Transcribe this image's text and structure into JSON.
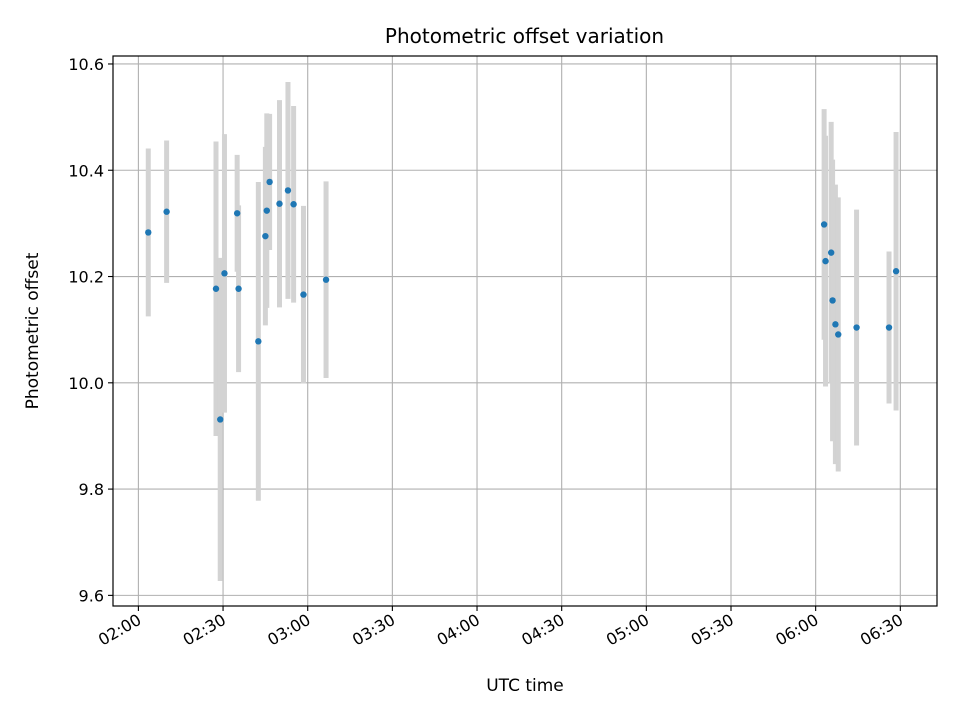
{
  "chart_data": {
    "type": "scatter",
    "title": "Photometric offset variation",
    "xlabel": "UTC time",
    "ylabel": "Photometric offset",
    "x_axis_type": "time",
    "xlim": [
      "01:51",
      "06:43"
    ],
    "ylim": [
      9.58,
      10.615
    ],
    "grid": true,
    "x_ticks": [
      "02:00",
      "02:30",
      "03:00",
      "03:30",
      "04:00",
      "04:30",
      "05:00",
      "05:30",
      "06:00",
      "06:30"
    ],
    "y_ticks": [
      "9.6",
      "9.8",
      "10.0",
      "10.2",
      "10.4",
      "10.6"
    ],
    "point_color": "#1f77b4",
    "errorbar_color": "#d3d3d3",
    "series": [
      {
        "points": [
          {
            "t": "02:03:30",
            "y": 10.283,
            "err": 0.158
          },
          {
            "t": "02:10:00",
            "y": 10.322,
            "err": 0.134
          },
          {
            "t": "02:27:30",
            "y": 10.177,
            "err": 0.277
          },
          {
            "t": "02:29:00",
            "y": 9.931,
            "err": 0.304
          },
          {
            "t": "02:30:30",
            "y": 10.206,
            "err": 0.262
          },
          {
            "t": "02:35:00",
            "y": 10.319,
            "err": 0.11
          },
          {
            "t": "02:35:30",
            "y": 10.177,
            "err": 0.157
          },
          {
            "t": "02:42:30",
            "y": 10.078,
            "err": 0.3
          },
          {
            "t": "02:45:00",
            "y": 10.276,
            "err": 0.168
          },
          {
            "t": "02:45:30",
            "y": 10.324,
            "err": 0.183
          },
          {
            "t": "02:46:30",
            "y": 10.378,
            "err": 0.128
          },
          {
            "t": "02:50:00",
            "y": 10.337,
            "err": 0.195
          },
          {
            "t": "02:53:00",
            "y": 10.362,
            "err": 0.204
          },
          {
            "t": "02:55:00",
            "y": 10.336,
            "err": 0.185
          },
          {
            "t": "02:58:30",
            "y": 10.166,
            "err": 0.167
          },
          {
            "t": "03:06:30",
            "y": 10.194,
            "err": 0.185
          },
          {
            "t": "06:03:00",
            "y": 10.298,
            "err": 0.217
          },
          {
            "t": "06:03:30",
            "y": 10.229,
            "err": 0.236
          },
          {
            "t": "06:05:30",
            "y": 10.245,
            "err": 0.246
          },
          {
            "t": "06:06:00",
            "y": 10.155,
            "err": 0.265
          },
          {
            "t": "06:07:00",
            "y": 10.11,
            "err": 0.263
          },
          {
            "t": "06:08:00",
            "y": 10.091,
            "err": 0.258
          },
          {
            "t": "06:14:30",
            "y": 10.104,
            "err": 0.222
          },
          {
            "t": "06:26:00",
            "y": 10.104,
            "err": 0.143
          },
          {
            "t": "06:28:30",
            "y": 10.21,
            "err": 0.262
          }
        ]
      }
    ]
  }
}
